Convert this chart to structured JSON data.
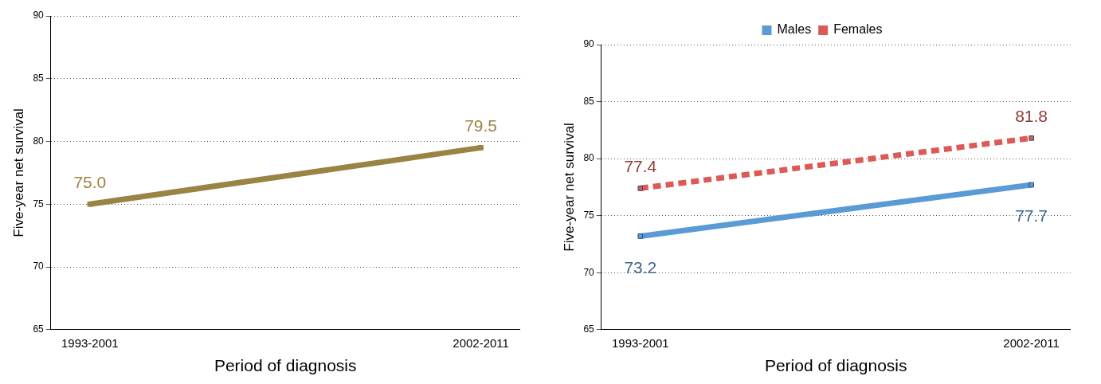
{
  "chart_data": [
    {
      "type": "line",
      "categories": [
        "1993-2001",
        "2002-2011"
      ],
      "xlabel": "Period of diagnosis",
      "ylabel": "Five-year net survival",
      "ylim": [
        65,
        90
      ],
      "yticks": [
        65,
        70,
        75,
        80,
        85,
        90
      ],
      "grid": "y",
      "marker": "square",
      "line_style": "solid",
      "legend": false,
      "series": [
        {
          "color": "#9a8444",
          "values": [
            75.0,
            79.5
          ],
          "value_labels": [
            "75.0",
            "79.5"
          ]
        }
      ]
    },
    {
      "type": "line",
      "categories": [
        "1993-2001",
        "2002-2011"
      ],
      "xlabel": "Period of diagnosis",
      "ylabel": "Five-year net survival",
      "ylim": [
        65,
        90
      ],
      "yticks": [
        65,
        70,
        75,
        80,
        85,
        90
      ],
      "grid": "y",
      "marker": "square",
      "legend": "top",
      "series": [
        {
          "name": "Males",
          "color": "#5b9bd5",
          "line_style": "solid",
          "values": [
            73.2,
            77.7
          ],
          "value_labels": [
            "73.2",
            "77.7"
          ]
        },
        {
          "name": "Females",
          "color": "#dc5a55",
          "line_style": "dashed",
          "values": [
            77.4,
            81.8
          ],
          "value_labels": [
            "77.4",
            "81.8"
          ]
        }
      ]
    }
  ]
}
